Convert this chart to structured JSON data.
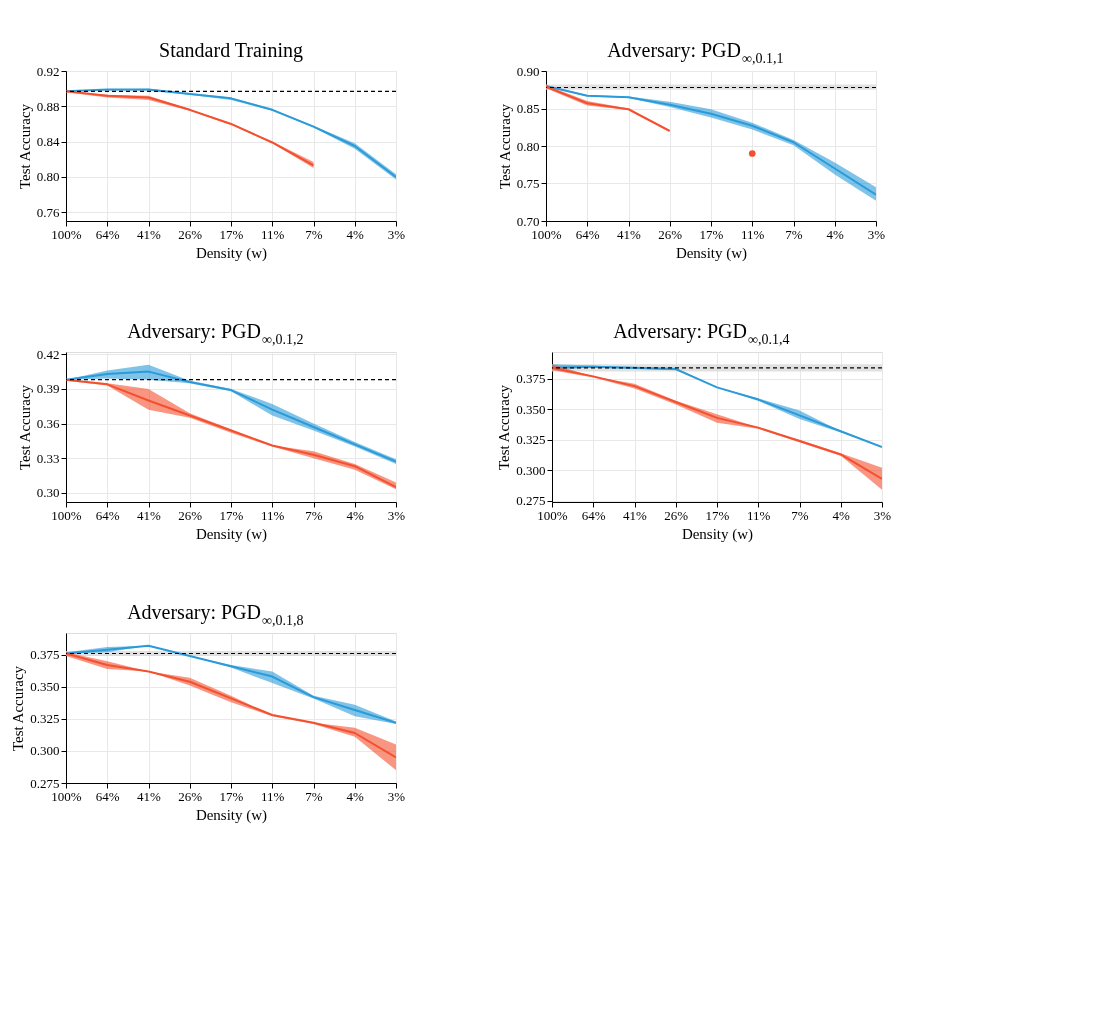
{
  "chart_data": [
    {
      "type": "line",
      "title": "Standard Training",
      "xlabel": "Density (w)",
      "ylabel": "Test Accuracy",
      "categories": [
        "100%",
        "64%",
        "41%",
        "26%",
        "17%",
        "11%",
        "7%",
        "4%",
        "3%"
      ],
      "ylim": [
        0.75,
        0.92
      ],
      "yticks": [
        0.76,
        {
          "value": 0.8,
          "label": "0.80"
        },
        0.84,
        0.88,
        0.92
      ],
      "grid": true,
      "series": [
        {
          "color": "#2a9bd8",
          "values": [
            0.897,
            0.899,
            0.899,
            0.894,
            0.889,
            0.876,
            0.857,
            0.835,
            0.8
          ],
          "lower": [
            0.897,
            0.898,
            0.898,
            0.893,
            0.887,
            0.875,
            0.856,
            0.832,
            0.797
          ],
          "upper": [
            0.897,
            0.899,
            0.9,
            0.895,
            0.89,
            0.877,
            0.858,
            0.838,
            0.803
          ]
        },
        {
          "color": "#f4502f",
          "values": [
            0.897,
            0.892,
            0.89,
            0.876,
            0.86,
            0.839,
            0.813,
            null,
            null
          ],
          "lower": [
            0.896,
            0.89,
            0.887,
            0.875,
            0.859,
            0.838,
            0.81,
            null,
            null
          ],
          "upper": [
            0.897,
            0.893,
            0.892,
            0.877,
            0.861,
            0.84,
            0.817,
            null,
            null
          ]
        }
      ],
      "ref_lines": [
        {
          "axis": "y",
          "value": 0.897,
          "color": "#000000",
          "line_style": "dashed"
        }
      ]
    },
    {
      "type": "line",
      "title": "Adversary: PGD$_{∞,0.1,1}$",
      "xlabel": "Density (w)",
      "ylabel": "Test Accuracy",
      "categories": [
        "100%",
        "64%",
        "41%",
        "26%",
        "17%",
        "11%",
        "7%",
        "4%",
        "3%"
      ],
      "ylim": [
        0.7,
        0.9
      ],
      "yticks": [
        {
          "value": 0.7,
          "label": "0.70"
        },
        0.75,
        {
          "value": 0.8,
          "label": "0.80"
        },
        0.85,
        {
          "value": 0.9,
          "label": "0.90"
        }
      ],
      "grid": true,
      "series": [
        {
          "color": "#2a9bd8",
          "values": [
            0.88,
            0.867,
            0.865,
            0.855,
            0.843,
            0.827,
            0.805,
            0.77,
            0.735
          ],
          "lower": [
            0.879,
            0.866,
            0.864,
            0.852,
            0.838,
            0.822,
            0.801,
            0.762,
            0.727
          ],
          "upper": [
            0.881,
            0.868,
            0.866,
            0.859,
            0.849,
            0.831,
            0.808,
            0.778,
            0.745
          ]
        },
        {
          "color": "#f4502f",
          "values": [
            0.879,
            0.857,
            0.849,
            0.82,
            null,
            0.79,
            null,
            null,
            null
          ],
          "lower": [
            0.877,
            0.854,
            0.848,
            0.82,
            null,
            null,
            null,
            null,
            null
          ],
          "upper": [
            0.881,
            0.86,
            0.85,
            0.82,
            null,
            null,
            null,
            null,
            null
          ]
        }
      ],
      "ref_lines": [
        {
          "axis": "y",
          "value": 0.878,
          "color": "#000000",
          "line_style": "dashed"
        }
      ],
      "bands": [
        {
          "axis": "y",
          "from": 0.875,
          "to": 0.882,
          "color": "#d9d9d9"
        }
      ]
    },
    {
      "type": "line",
      "title": "Adversary: PGD$_{∞,0.1,2}$",
      "xlabel": "Density (w)",
      "ylabel": "Test Accuracy",
      "categories": [
        "100%",
        "64%",
        "41%",
        "26%",
        "17%",
        "11%",
        "7%",
        "4%",
        "3%"
      ],
      "ylim": [
        0.292,
        0.422
      ],
      "yticks": [
        {
          "value": 0.3,
          "label": "0.30"
        },
        0.33,
        0.36,
        0.39,
        0.42
      ],
      "grid": true,
      "series": [
        {
          "color": "#2a9bd8",
          "values": [
            0.398,
            0.403,
            0.405,
            0.396,
            0.389,
            0.372,
            0.357,
            0.342,
            0.327
          ],
          "lower": [
            0.398,
            0.399,
            0.398,
            0.395,
            0.388,
            0.367,
            0.354,
            0.34,
            0.325
          ],
          "upper": [
            0.398,
            0.406,
            0.411,
            0.397,
            0.39,
            0.377,
            0.36,
            0.344,
            0.329
          ]
        },
        {
          "color": "#f4502f",
          "values": [
            0.398,
            0.394,
            0.38,
            0.367,
            0.354,
            0.341,
            0.333,
            0.323,
            0.305
          ],
          "lower": [
            0.397,
            0.393,
            0.372,
            0.365,
            0.352,
            0.34,
            0.33,
            0.32,
            0.303
          ],
          "upper": [
            0.398,
            0.395,
            0.39,
            0.369,
            0.355,
            0.341,
            0.336,
            0.325,
            0.309
          ]
        }
      ],
      "ref_lines": [
        {
          "axis": "y",
          "value": 0.398,
          "color": "#000000",
          "line_style": "dashed"
        }
      ]
    },
    {
      "type": "line",
      "title": "Adversary: PGD$_{∞,0.1,4}$",
      "xlabel": "Density (w)",
      "ylabel": "Test Accuracy",
      "categories": [
        "100%",
        "64%",
        "41%",
        "26%",
        "17%",
        "11%",
        "7%",
        "4%",
        "3%"
      ],
      "ylim": [
        0.274,
        0.397
      ],
      "yticks": [
        0.275,
        {
          "value": 0.3,
          "label": "0.300"
        },
        0.325,
        {
          "value": 0.35,
          "label": "0.350"
        },
        0.375
      ],
      "grid": true,
      "series": [
        {
          "color": "#2a9bd8",
          "values": [
            0.384,
            0.385,
            0.384,
            0.383,
            0.368,
            0.358,
            0.345,
            0.332,
            0.319
          ],
          "lower": [
            0.383,
            0.384,
            0.383,
            0.382,
            0.368,
            0.357,
            0.342,
            0.331,
            0.319
          ],
          "upper": [
            0.387,
            0.386,
            0.384,
            0.384,
            0.368,
            0.359,
            0.349,
            0.332,
            0.319
          ]
        },
        {
          "color": "#f4502f",
          "values": [
            0.384,
            0.377,
            0.369,
            0.356,
            0.343,
            0.335,
            0.324,
            0.313,
            0.293
          ],
          "lower": [
            0.382,
            0.376,
            0.367,
            0.354,
            0.339,
            0.334,
            0.323,
            0.312,
            0.284
          ],
          "upper": [
            0.387,
            0.377,
            0.371,
            0.357,
            0.346,
            0.335,
            0.325,
            0.314,
            0.302
          ]
        }
      ],
      "ref_lines": [
        {
          "axis": "y",
          "value": 0.384,
          "color": "#000000",
          "line_style": "dashed"
        }
      ],
      "bands": [
        {
          "axis": "y",
          "from": 0.381,
          "to": 0.387,
          "color": "#d9d9d9"
        }
      ]
    },
    {
      "type": "line",
      "title": "Adversary: PGD$_{∞,0.1,8}$",
      "xlabel": "Density (w)",
      "ylabel": "Test Accuracy",
      "categories": [
        "100%",
        "64%",
        "41%",
        "26%",
        "17%",
        "11%",
        "7%",
        "4%",
        "3%"
      ],
      "ylim": [
        0.275,
        0.392
      ],
      "yticks": [
        0.275,
        {
          "value": 0.3,
          "label": "0.300"
        },
        0.325,
        {
          "value": 0.35,
          "label": "0.350"
        },
        0.375
      ],
      "grid": true,
      "series": [
        {
          "color": "#2a9bd8",
          "values": [
            0.376,
            0.379,
            0.382,
            0.374,
            0.366,
            0.358,
            0.342,
            0.332,
            0.322
          ],
          "lower": [
            0.376,
            0.377,
            0.382,
            0.374,
            0.365,
            0.353,
            0.341,
            0.327,
            0.321
          ],
          "upper": [
            0.377,
            0.381,
            0.382,
            0.374,
            0.367,
            0.362,
            0.343,
            0.336,
            0.323
          ]
        },
        {
          "color": "#f4502f",
          "values": [
            0.376,
            0.367,
            0.362,
            0.354,
            0.341,
            0.328,
            0.322,
            0.314,
            0.295
          ],
          "lower": [
            0.374,
            0.364,
            0.362,
            0.351,
            0.338,
            0.327,
            0.321,
            0.311,
            0.285
          ],
          "upper": [
            0.377,
            0.37,
            0.362,
            0.357,
            0.343,
            0.328,
            0.322,
            0.318,
            0.305
          ]
        }
      ],
      "ref_lines": [
        {
          "axis": "y",
          "value": 0.376,
          "color": "#000000",
          "line_style": "dashed"
        }
      ],
      "bands": [
        {
          "axis": "y",
          "from": 0.374,
          "to": 0.378,
          "color": "#d9d9d9"
        }
      ]
    }
  ]
}
